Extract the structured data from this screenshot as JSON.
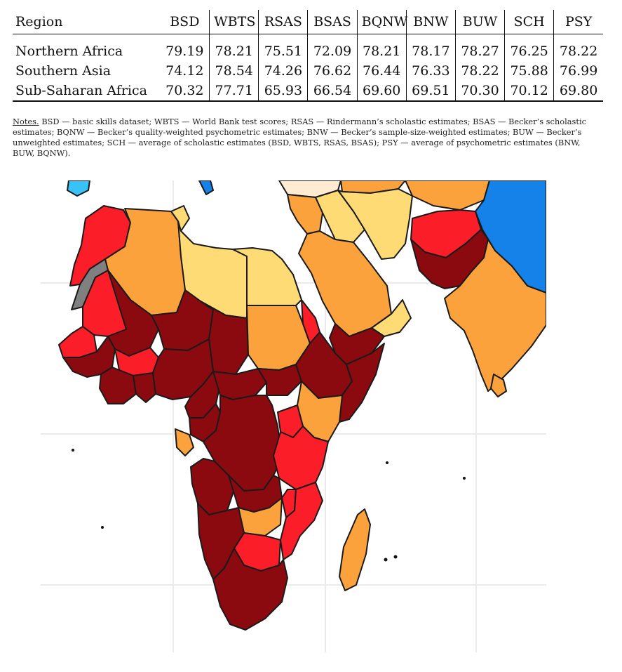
{
  "table": {
    "headers": [
      "Region",
      "BSD",
      "WBTS",
      "RSAS",
      "BSAS",
      "BQNW",
      "BNW",
      "BUW",
      "SCH",
      "PSY"
    ],
    "rows": [
      {
        "region": "Northern Africa",
        "values": [
          "79.19",
          "78.21",
          "75.51",
          "72.09",
          "78.21",
          "78.17",
          "78.27",
          "76.25",
          "78.22"
        ]
      },
      {
        "region": "Southern Asia",
        "values": [
          "74.12",
          "78.54",
          "74.26",
          "76.62",
          "76.44",
          "76.33",
          "78.22",
          "75.88",
          "76.99"
        ]
      },
      {
        "region": "Sub-Saharan Africa",
        "values": [
          "70.32",
          "77.71",
          "65.93",
          "66.54",
          "69.60",
          "69.51",
          "70.30",
          "70.12",
          "69.80"
        ]
      }
    ]
  },
  "notes": {
    "label": "Notes.",
    "text": " BSD — basic skills dataset; WBTS — World Bank test scores; RSAS — Rindermann’s scholastic estimates; BSAS — Becker’s scholastic estimates; BQNW — Becker’s quality-weighted psychometric estimates; BNW — Becker’s sample-size-weighted estimates; BUW — Becker’s unweighted estimates; SCH — average of scholastic estimates (BSD, WBTS, RSAS, BSAS); PSY — average of psychometric estimates (BNW, BUW, BQNW)."
  },
  "map_colors": {
    "darkred": "#8b0a10",
    "red": "#fb1e28",
    "orange": "#fba23c",
    "yellow": "#fedb74",
    "cream": "#feebd2",
    "blue": "#1482e8",
    "lightblue": "#38c2f5",
    "gray": "#808080",
    "water": "#ffffff",
    "grid": "#ebebeb",
    "border": "#1a1a1a"
  }
}
